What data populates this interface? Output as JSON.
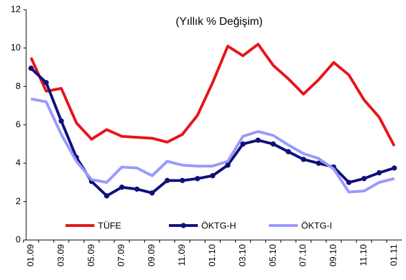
{
  "chart_data": {
    "type": "line",
    "title": "(Yıllık % Değişim)",
    "categories": [
      "01.09",
      null,
      "03.09",
      null,
      "05.09",
      null,
      "07.09",
      null,
      "09.09",
      null,
      "11.09",
      null,
      "01.10",
      null,
      "03.10",
      null,
      "05.10",
      null,
      "07.10",
      null,
      "09.10",
      null,
      "11.10",
      null,
      "01.11"
    ],
    "series": [
      {
        "name": "TÜFE",
        "color": "#e8141a",
        "markers": false,
        "values": [
          9.5,
          7.75,
          7.9,
          6.1,
          5.25,
          5.75,
          5.4,
          5.35,
          5.3,
          5.1,
          5.5,
          6.5,
          8.2,
          10.1,
          9.6,
          10.2,
          9.1,
          8.4,
          7.6,
          8.35,
          9.25,
          8.6,
          7.3,
          6.4,
          4.9
        ]
      },
      {
        "name": "ÖKTG-H",
        "color": "#10107a",
        "markers": true,
        "values": [
          8.95,
          8.2,
          6.2,
          4.3,
          3.05,
          2.3,
          2.75,
          2.65,
          2.45,
          3.1,
          3.1,
          3.2,
          3.35,
          3.9,
          5.0,
          5.2,
          5.0,
          4.6,
          4.2,
          4.0,
          3.8,
          3.0,
          3.2,
          3.5,
          3.75
        ]
      },
      {
        "name": "ÖKTG-I",
        "color": "#9999ff",
        "markers": false,
        "values": [
          7.35,
          7.2,
          5.5,
          4.1,
          3.15,
          3.0,
          3.8,
          3.75,
          3.35,
          4.1,
          3.9,
          3.85,
          3.85,
          4.1,
          5.4,
          5.65,
          5.45,
          4.95,
          4.5,
          4.25,
          3.7,
          2.5,
          2.55,
          3.0,
          3.2
        ]
      }
    ],
    "ylim": [
      0,
      12
    ],
    "yticks": [
      0,
      2,
      4,
      6,
      8,
      10,
      12
    ],
    "grid": false,
    "legend": "bottom"
  }
}
